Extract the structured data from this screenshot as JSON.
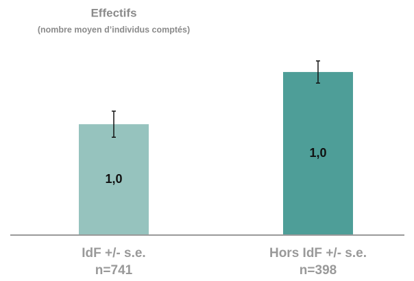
{
  "chart_data": {
    "type": "bar",
    "title": "Effectifs",
    "subtitle": "(nombre moyen d’individus comptés)",
    "categories": [
      "IdF +/- s.e.",
      "Hors IdF  +/- s.e."
    ],
    "category_counts": [
      "n=741",
      "n=398"
    ],
    "values": [
      0.96,
      1.04
    ],
    "value_labels": [
      "1,0",
      "1,0"
    ],
    "errors": [
      0.02,
      0.017
    ],
    "colors": [
      "#96c3be",
      "#4e9e98"
    ],
    "ylim": [
      0.79,
      1.08
    ]
  }
}
